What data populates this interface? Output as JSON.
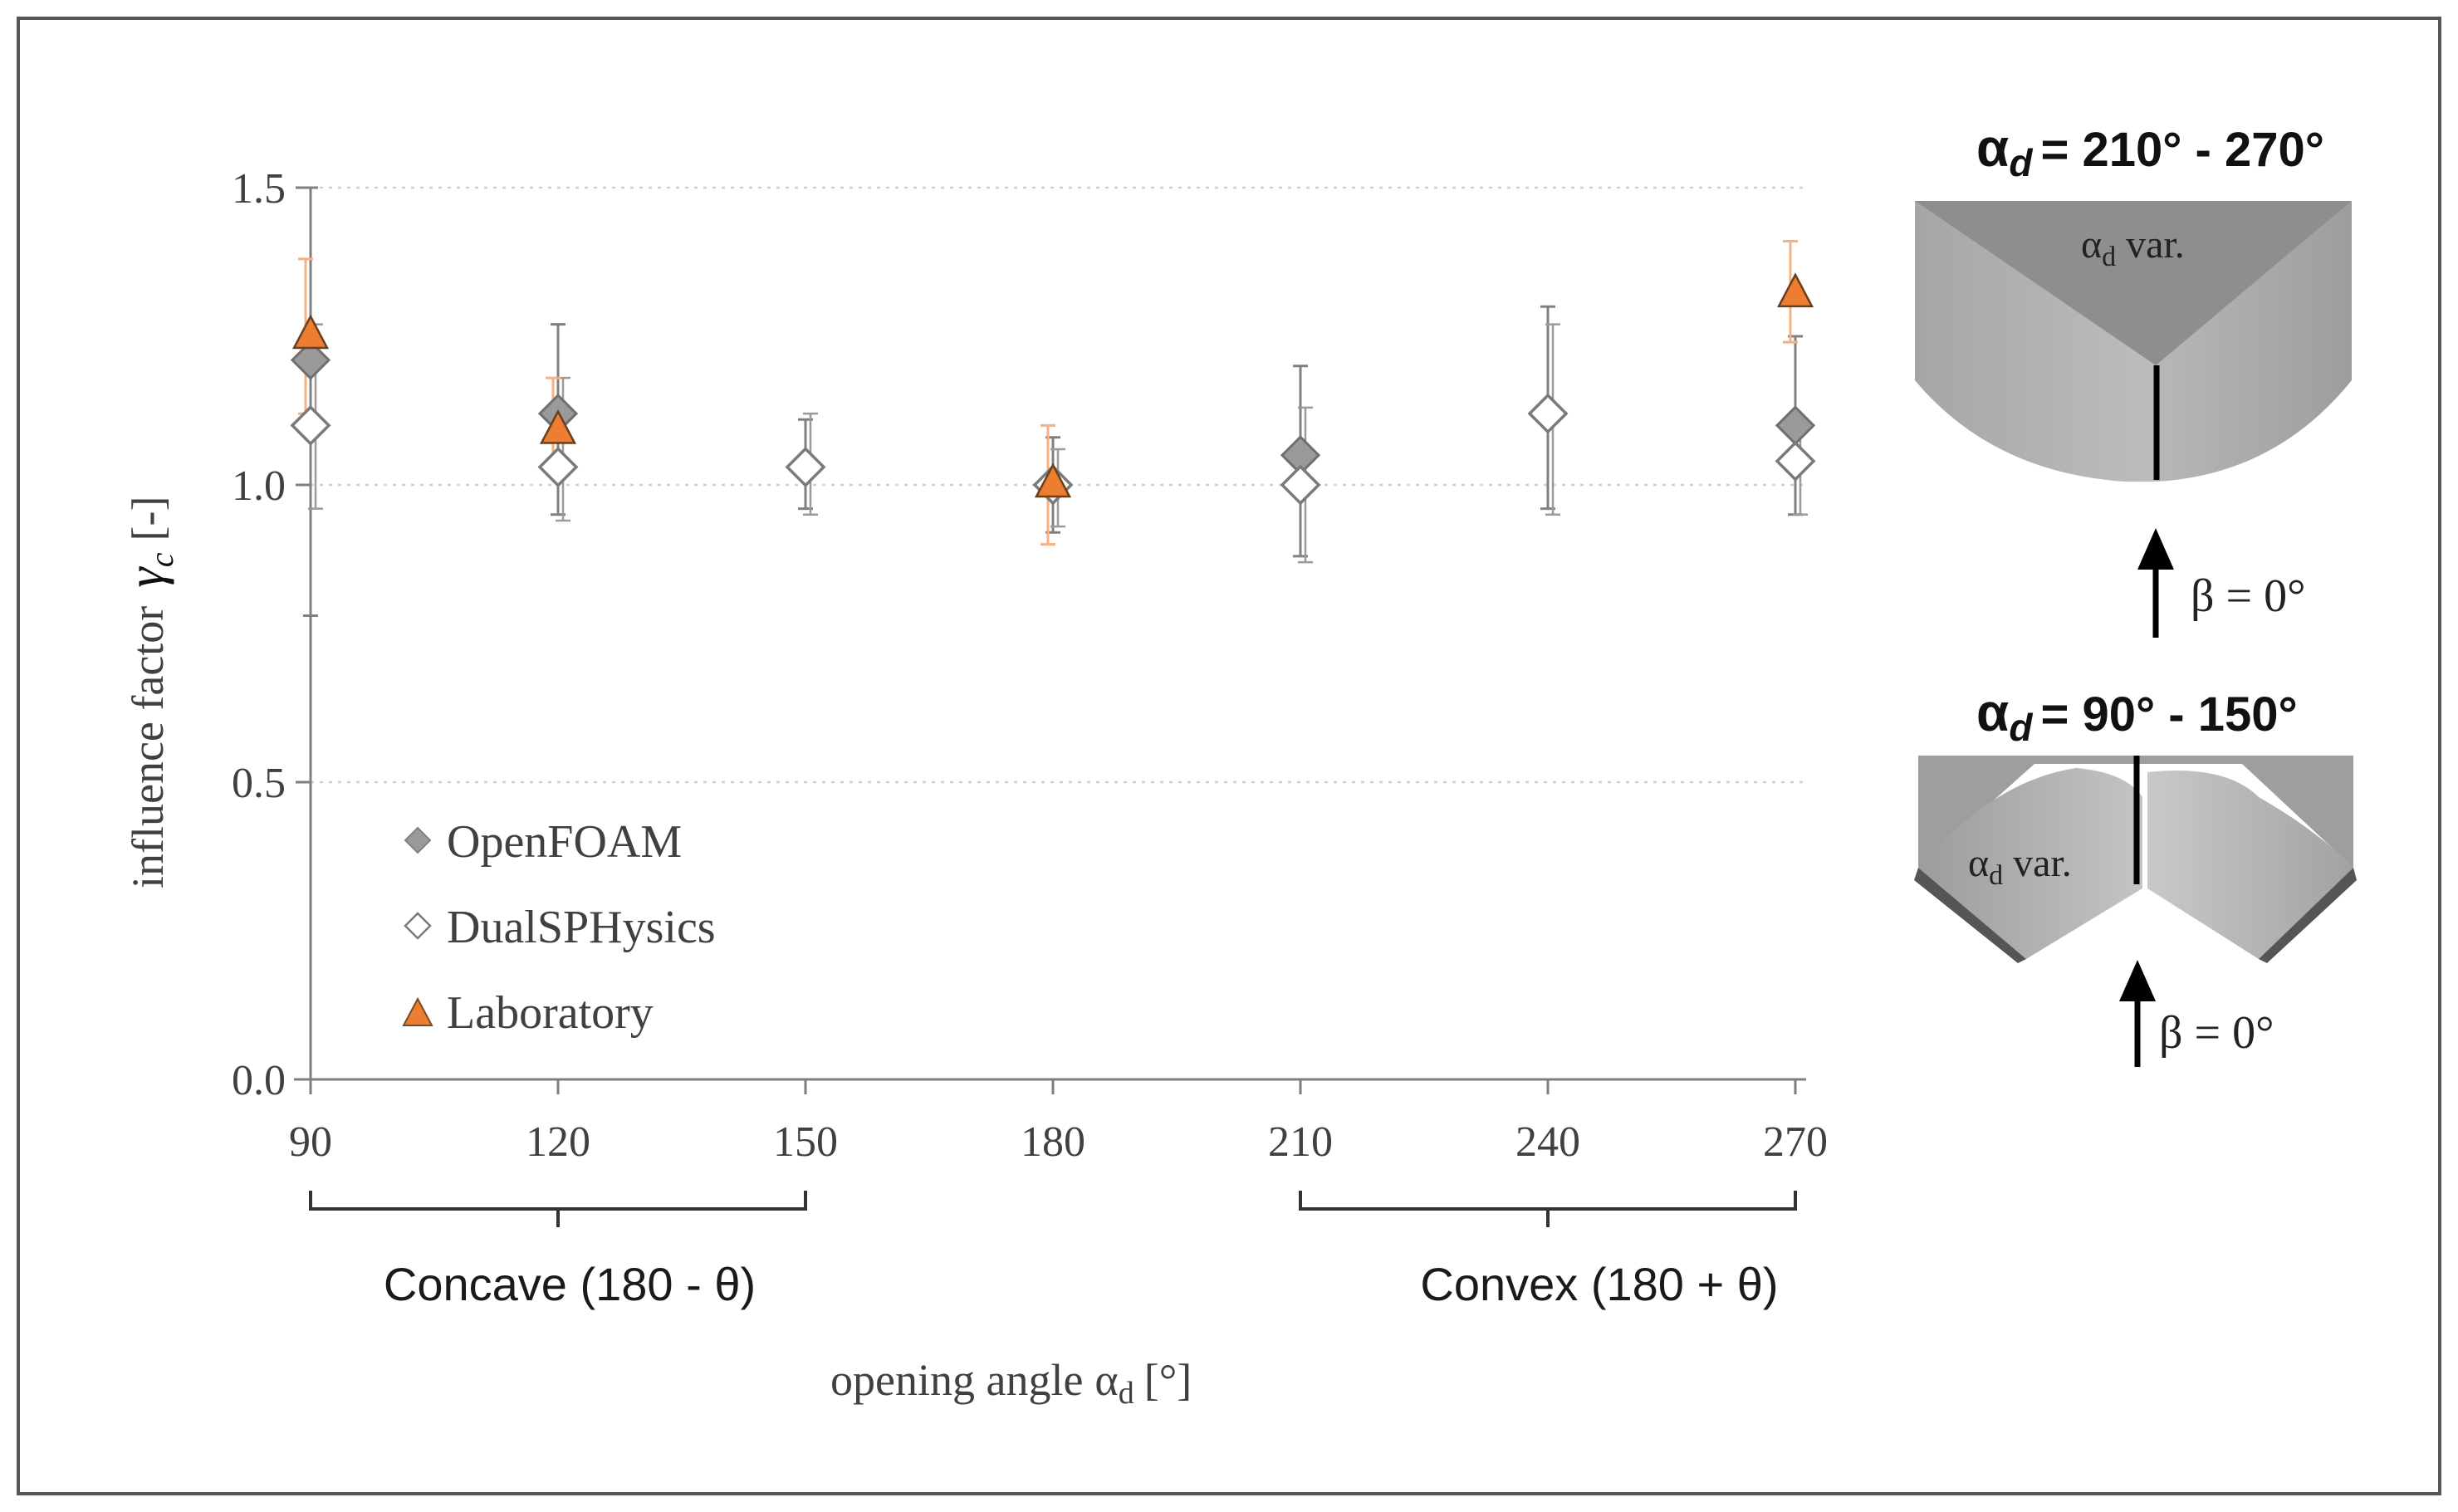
{
  "chart_data": {
    "type": "scatter",
    "title": "",
    "xlabel": "opening angle",
    "xlabel_symbol": "α",
    "xlabel_sub": "d",
    "xlabel_unit": "[°]",
    "ylabel": "influence factor",
    "ylabel_symbol": "γ",
    "ylabel_sub": "c",
    "ylabel_unit": "[-]",
    "x_ticks": [
      90,
      120,
      150,
      180,
      210,
      240,
      270
    ],
    "y_ticks": [
      "0.0",
      "0.5",
      "1.0",
      "1.5"
    ],
    "xlim": [
      90,
      270
    ],
    "ylim": [
      0,
      1.5
    ],
    "grid": "horizontal-dotted",
    "legend_position": "bottom-left",
    "series": [
      {
        "name": "OpenFOAM",
        "marker": "diamond-filled",
        "color": "#9a9a9a",
        "x": [
          90,
          120,
          150,
          180,
          210,
          240,
          270
        ],
        "y": [
          1.21,
          1.12,
          1.03,
          1.0,
          1.05,
          1.12,
          1.1
        ],
        "err_low": [
          0.78,
          0.95,
          0.96,
          0.92,
          0.88,
          0.96,
          0.95
        ],
        "err_high": [
          1.5,
          1.27,
          1.11,
          1.08,
          1.2,
          1.3,
          1.25
        ]
      },
      {
        "name": "DualSPHysics",
        "marker": "diamond-open",
        "color": "#7a7a7a",
        "x": [
          90,
          120,
          150,
          180,
          210,
          240,
          270
        ],
        "y": [
          1.1,
          1.03,
          1.03,
          1.0,
          1.0,
          1.12,
          1.04
        ],
        "err_low": [
          0.96,
          0.94,
          0.95,
          0.93,
          0.87,
          0.95,
          0.95
        ],
        "err_high": [
          1.27,
          1.18,
          1.12,
          1.06,
          1.13,
          1.27,
          1.1
        ]
      },
      {
        "name": "Laboratory",
        "marker": "triangle-filled",
        "color": "#ed7d31",
        "x": [
          90,
          120,
          180,
          270
        ],
        "y": [
          1.25,
          1.09,
          1.0,
          1.32
        ],
        "err_low": [
          1.12,
          1.02,
          0.9,
          1.24
        ],
        "err_high": [
          1.38,
          1.18,
          1.1,
          1.41
        ]
      }
    ],
    "groups": [
      {
        "label": "Concave (180 - θ)",
        "from": 90,
        "to": 150
      },
      {
        "label": "Convex (180 + θ)",
        "from": 210,
        "to": 270
      }
    ]
  },
  "diagrams": {
    "top": {
      "title_symbol": "α",
      "title_sub": "d",
      "title_range": "= 210° - 270°",
      "region_label_symbol": "α",
      "region_label_sub": "d",
      "region_label_text": "var.",
      "flow_label": "β = 0°"
    },
    "bottom": {
      "title_symbol": "α",
      "title_sub": "d",
      "title_range": "= 90° - 150°",
      "region_label_symbol": "α",
      "region_label_sub": "d",
      "region_label_text": "var.",
      "flow_label": "β = 0°"
    }
  }
}
